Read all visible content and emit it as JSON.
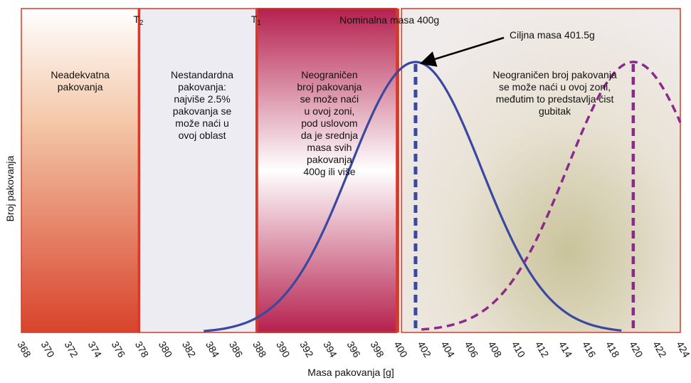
{
  "chart_data": {
    "type": "line",
    "title": "",
    "xlabel": "Masa pakovanja [g]",
    "ylabel": "Broj pakovanja",
    "xlim": [
      368,
      424
    ],
    "x_ticks": [
      368,
      370,
      372,
      374,
      376,
      378,
      380,
      382,
      384,
      386,
      388,
      390,
      392,
      394,
      396,
      398,
      400,
      402,
      404,
      406,
      408,
      410,
      412,
      414,
      416,
      418,
      420,
      422,
      424
    ],
    "grid": false,
    "legend": "none",
    "thresholds": [
      {
        "label": "T2",
        "main": "T",
        "sub": "2",
        "x": 378
      },
      {
        "label": "T1",
        "main": "T",
        "sub": "1",
        "x": 388
      }
    ],
    "nominal": {
      "label": "Nominalna masa 400g",
      "x": 400
    },
    "target": {
      "label": "Ciljna masa 401.5g",
      "x": 401.5
    },
    "zones": [
      {
        "from": 368,
        "to": 378,
        "lines": [
          "Neadekvatna",
          "pakovanja"
        ]
      },
      {
        "from": 378,
        "to": 388,
        "lines": [
          "Nestandardna",
          "pakovanja:",
          "najviše 2.5%",
          "pakovanja se",
          "može naći u",
          "ovoj oblast"
        ]
      },
      {
        "from": 388,
        "to": 400,
        "lines": [
          "Neograničen",
          "broj pakovanja",
          "se može naći",
          "u ovoj zoni,",
          "pod uslovom",
          "da je srednja",
          "masa svih",
          "pakovanja",
          "400g ili više"
        ]
      },
      {
        "from": 400,
        "to": 424,
        "lines": [
          "Neograničen broj pakovanja",
          "se može naći u ovoj zoni,",
          "međutim to predstavlja čist",
          "gubitak"
        ]
      }
    ],
    "series": [
      {
        "style": "solid",
        "color": "#3a49a0",
        "mean": 401.5,
        "sd": 5.6,
        "peak": 1.0,
        "dash_at": 401.5,
        "x": [
          383.5,
          386,
          388,
          390,
          392,
          394,
          396,
          398,
          400,
          401.5,
          403,
          405,
          407,
          409,
          411,
          413,
          415,
          417,
          419
        ],
        "y": [
          0.0,
          0.06,
          0.12,
          0.22,
          0.36,
          0.52,
          0.7,
          0.87,
          0.97,
          1.0,
          0.97,
          0.88,
          0.71,
          0.51,
          0.33,
          0.19,
          0.09,
          0.03,
          0.0
        ]
      },
      {
        "style": "dashed",
        "color": "#8a2a8a",
        "mean": 420,
        "sd": 5.6,
        "peak": 1.0,
        "dash_at": 420,
        "x": [
          402,
          404,
          406,
          408,
          410,
          412,
          414,
          416,
          418,
          420,
          422,
          424
        ],
        "y": [
          0.0,
          0.02,
          0.06,
          0.13,
          0.26,
          0.44,
          0.64,
          0.83,
          0.96,
          1.0,
          0.96,
          0.87
        ]
      }
    ],
    "colors": {
      "zone_red": "#d8432b",
      "zone_magenta": "#b5204f",
      "curve_blue": "#3a49a0",
      "curve_purple": "#8a2a8a",
      "border_red": "#d63a2a"
    }
  }
}
